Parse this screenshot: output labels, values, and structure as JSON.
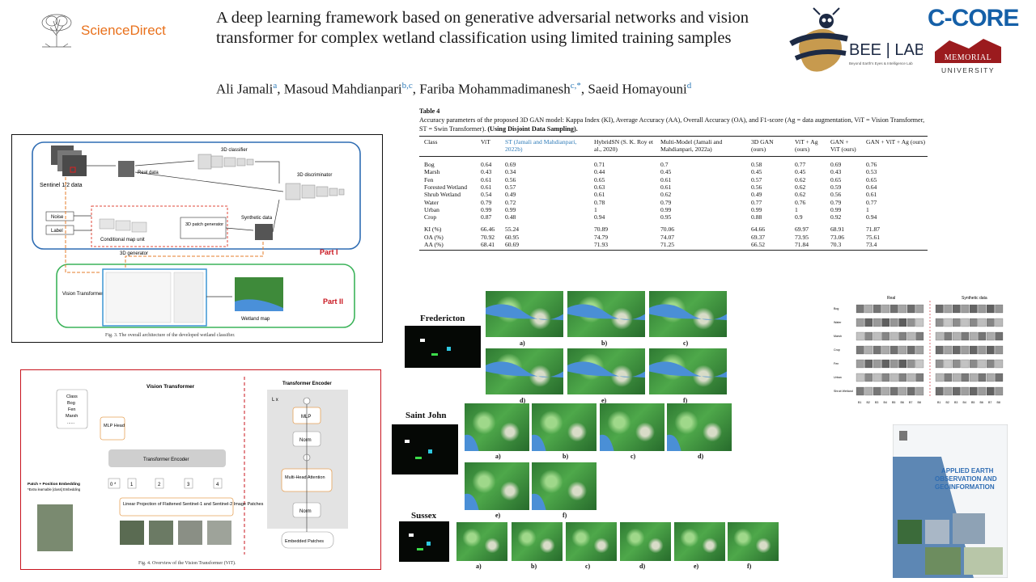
{
  "header": {
    "publisher": "ScienceDirect",
    "title": "A deep learning framework based on generative adversarial networks and vision transformer for complex wetland classification using limited training samples",
    "authors": [
      {
        "name": "Ali Jamali",
        "sup": "a"
      },
      {
        "name": "Masoud Mahdianpari",
        "sup": "b,c"
      },
      {
        "name": "Fariba Mohammadimanesh",
        "sup": "c,*"
      },
      {
        "name": "Saeid Homayouni",
        "sup": "d"
      }
    ],
    "logos": {
      "bee": "BEE | LAB",
      "bee_sub": "Beyond Earth's Eyes & Intelligence Lab",
      "ccore": "C-CORE",
      "memorial": "MEMORIAL",
      "university": "UNIVERSITY"
    }
  },
  "table": {
    "number": "Table 4",
    "caption": "Accuracy parameters of the proposed 3D GAN model: Kappa Index (KI), Average Accuracy (AA), Overall Accuracy (OA), and F1-score (Ag = data augmentation, ViT = Vision Transformer, ST = Swin Transformer).",
    "caption_extra": "(Using Disjoint Data Sampling).",
    "headers": [
      "Class",
      "ViT",
      "ST (Jamali and Mahdianpari, 2022b)",
      "HybridSN (S. K. Roy et al., 2020)",
      "Multi-Model (Jamali and Mahdianpari, 2022a)",
      "3D GAN (ours)",
      "ViT + Ag (ours)",
      "GAN + ViT (ours)",
      "GAN + ViT + Ag (ours)"
    ],
    "rows": [
      [
        "Bog",
        "0.64",
        "0.69",
        "0.71",
        "0.7",
        "0.58",
        "0.77",
        "0.69",
        "0.76"
      ],
      [
        "Marsh",
        "0.43",
        "0.34",
        "0.44",
        "0.45",
        "0.45",
        "0.45",
        "0.43",
        "0.53"
      ],
      [
        "Fen",
        "0.61",
        "0.56",
        "0.65",
        "0.61",
        "0.57",
        "0.62",
        "0.65",
        "0.65"
      ],
      [
        "Forested Wetland",
        "0.61",
        "0.57",
        "0.63",
        "0.61",
        "0.56",
        "0.62",
        "0.59",
        "0.64"
      ],
      [
        "Shrub Wetland",
        "0.54",
        "0.49",
        "0.61",
        "0.62",
        "0.49",
        "0.62",
        "0.56",
        "0.61"
      ],
      [
        "Water",
        "0.79",
        "0.72",
        "0.78",
        "0.79",
        "0.77",
        "0.76",
        "0.79",
        "0.77"
      ],
      [
        "Urban",
        "0.99",
        "0.99",
        "1",
        "0.99",
        "0.99",
        "1",
        "0.99",
        "1"
      ],
      [
        "Crop",
        "0.87",
        "0.48",
        "0.94",
        "0.95",
        "0.88",
        "0.9",
        "0.92",
        "0.94"
      ]
    ],
    "summary": [
      [
        "KI (%)",
        "66.46",
        "55.24",
        "70.89",
        "70.06",
        "64.66",
        "69.97",
        "68.91",
        "71.87"
      ],
      [
        "OA (%)",
        "70.92",
        "60.95",
        "74.79",
        "74.07",
        "69.37",
        "73.95",
        "73.06",
        "75.61"
      ],
      [
        "AA (%)",
        "68.41",
        "60.69",
        "71.93",
        "71.25",
        "66.52",
        "71.84",
        "70.3",
        "73.4"
      ]
    ]
  },
  "fig3": {
    "labels": {
      "sentinel": "Sentinel 1/2 data",
      "real": "Real data",
      "classifier3d": "3D classifier",
      "discriminator": "3D discriminator",
      "noise": "Noise",
      "label": "Label",
      "cond": "Conditional map unit",
      "patchgen": "3D patch generator",
      "synthetic": "Synthetic data",
      "generator": "3D generator",
      "part1": "Part I",
      "vit": "Vision Transformer classifier",
      "wetland": "Wetland map",
      "part2": "Part II"
    },
    "caption": "Fig. 3.  The overall architecture of the developed wetland classifier."
  },
  "fig4": {
    "vit_title": "Vision Transformer",
    "enc_title": "Transformer Encoder",
    "classes": [
      "Class",
      "Bog",
      "Fen",
      "Marsh",
      "......"
    ],
    "mlp": "MLP Head",
    "encoder": "Transformer Encoder",
    "patch_embed": "Patch + Position Embedding",
    "extra": "*Extra learnable [class] Embedding",
    "tokens": [
      "0 *",
      "1",
      "2",
      "3",
      "4"
    ],
    "linear": "Linear Projection of Flattened Sentinel-1 and Sentinel-2 Image Patches",
    "lx": "L x",
    "mlp2": "MLP",
    "norm": "Norm",
    "mha": "Multi-Head Attention",
    "embedded": "Embedded Patches",
    "caption": "Fig. 4.  Overview of the Vision Transformer (ViT)."
  },
  "maps": {
    "sites": [
      "Fredericton",
      "Saint John",
      "Sussex"
    ],
    "letters": [
      "a)",
      "b)",
      "c)",
      "d)",
      "e)",
      "f)"
    ]
  },
  "gan_fig": {
    "real": "Real",
    "synthetic": "Synthetic data",
    "rows": [
      "Bog",
      "Water",
      "Marsh",
      "Crop",
      "Fen",
      "Urban",
      "Shrub Wetland"
    ],
    "bands": [
      "B1",
      "B2",
      "B3",
      "B4",
      "B5",
      "B6",
      "B7",
      "B8"
    ]
  },
  "cover": {
    "journal_line1": "APPLIED EARTH",
    "journal_line2": "OBSERVATION AND",
    "journal_line3": "GEOINFORMATION"
  },
  "colors": {
    "sd_orange": "#e9711c",
    "link_blue": "#2e7bb8",
    "ccore_blue": "#1560a8",
    "mun_red": "#9b1b1e",
    "part_red": "#c8141e",
    "fig_green": "#3cb35a",
    "fig_blue": "#2f6db3"
  }
}
